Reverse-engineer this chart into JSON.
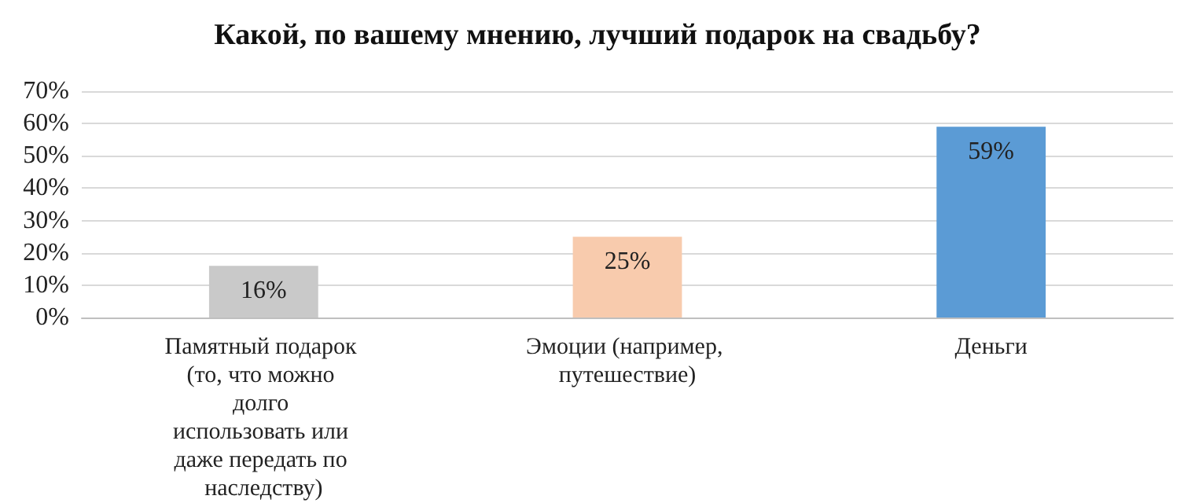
{
  "chart_data": {
    "type": "bar",
    "title": "Какой, по вашему мнению, лучший подарок на свадьбу?",
    "categories": [
      "Памятный подарок (то, что можно долго использовать или даже передать по наследству)",
      "Эмоции (например, путешествие)",
      "Деньги"
    ],
    "values": [
      16,
      25,
      59
    ],
    "colors": [
      "#c9c9c9",
      "#f8cbad",
      "#5b9bd5"
    ],
    "value_labels": [
      "16%",
      "25%",
      "59%"
    ],
    "ylim": [
      0,
      70
    ],
    "yticks": [
      {
        "value": 0,
        "label": "0%"
      },
      {
        "value": 10,
        "label": "10%"
      },
      {
        "value": 20,
        "label": "20%"
      },
      {
        "value": 30,
        "label": "30%"
      },
      {
        "value": 40,
        "label": "40%"
      },
      {
        "value": 50,
        "label": "50%"
      },
      {
        "value": 60,
        "label": "60%"
      },
      {
        "value": 70,
        "label": "70%"
      }
    ],
    "grid": "y"
  }
}
